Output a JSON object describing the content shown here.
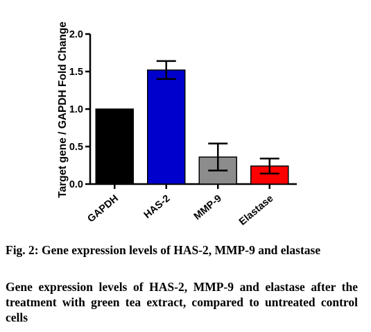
{
  "chart_data": {
    "type": "bar",
    "categories": [
      "GAPDH",
      "HAS-2",
      "MMP-9",
      "Elastase"
    ],
    "values": [
      1.0,
      1.52,
      0.36,
      0.24
    ],
    "error": [
      0.0,
      0.12,
      0.18,
      0.1
    ],
    "colors": [
      "#000000",
      "#0000cc",
      "#8c8c8c",
      "#ff0000"
    ],
    "ylabel": "Target gene / GAPDH Fold Change",
    "xlabel": "",
    "ylim": [
      0,
      2.0
    ],
    "yticks": [
      "0.0",
      "0.5",
      "1.0",
      "1.5",
      "2.0"
    ],
    "ytick_values": [
      0,
      0.5,
      1.0,
      1.5,
      2.0
    ],
    "grid": false,
    "legend": "none"
  },
  "caption": {
    "title": "Fig. 2: Gene expression levels of HAS-2, MMP-9 and elastase",
    "description": "Gene expression levels of HAS-2, MMP-9 and elastase after the treatment with green tea extract, compared to untreated control cells"
  }
}
